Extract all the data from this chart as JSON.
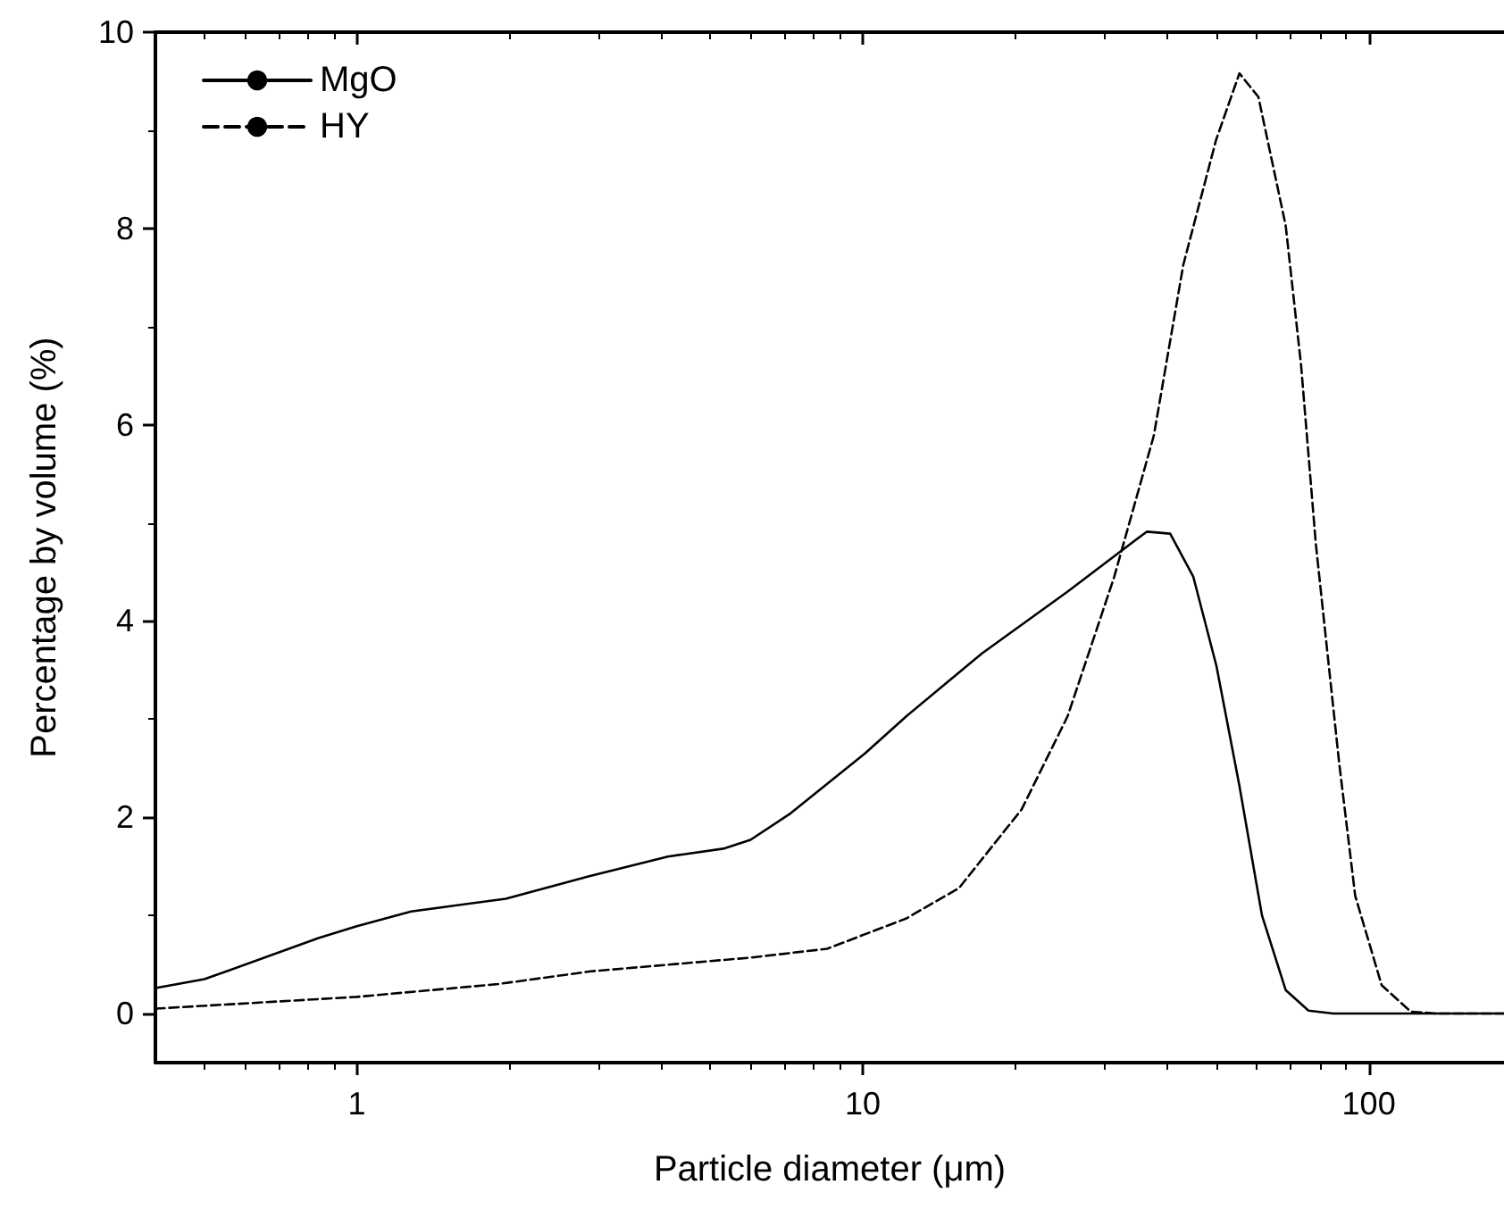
{
  "chart_data": {
    "type": "line",
    "xlabel": "Particle diameter (μm)",
    "ylabel": "Percentage by volume (%)",
    "log": "x",
    "xlim": [
      0.4,
      185
    ],
    "xticks": [
      1,
      10,
      100
    ],
    "ylim": [
      -0.5,
      10
    ],
    "yticks": [
      0,
      2,
      4,
      6,
      8,
      10
    ],
    "grid": false,
    "legend": "top left",
    "marker": "none",
    "series": [
      {
        "name": "MgO",
        "color": "#000000",
        "line_style": "solid",
        "x": [
          0.4,
          0.5,
          0.84,
          1.0,
          1.28,
          1.97,
          2.88,
          4.12,
          5.3,
          6.0,
          7.2,
          10.1,
          12.2,
          17.2,
          25.4,
          36.4,
          40.5,
          45,
          50,
          55.5,
          61.5,
          68.5,
          76,
          85,
          185
        ],
        "values": [
          0.26,
          0.35,
          0.77,
          0.89,
          1.04,
          1.17,
          1.4,
          1.6,
          1.68,
          1.77,
          2.04,
          2.65,
          3.03,
          3.67,
          4.3,
          4.91,
          4.89,
          4.45,
          3.54,
          2.32,
          1.0,
          0.24,
          0.03,
          0,
          0
        ]
      },
      {
        "name": "HY",
        "color": "#000000",
        "line_style": "dashed",
        "x": [
          0.4,
          1.0,
          1.9,
          2.9,
          6.0,
          8.5,
          12.2,
          15.5,
          20.6,
          25.4,
          31.4,
          37.6,
          43,
          49.9,
          55.5,
          60.5,
          68.5,
          73.5,
          78.6,
          87.4,
          94,
          106,
          121,
          136,
          185
        ],
        "values": [
          0.05,
          0.17,
          0.3,
          0.43,
          0.57,
          0.66,
          0.97,
          1.28,
          2.08,
          3.03,
          4.45,
          5.89,
          7.63,
          8.9,
          9.58,
          9.34,
          8.03,
          6.6,
          4.78,
          2.55,
          1.2,
          0.29,
          0.02,
          0,
          0
        ]
      }
    ]
  }
}
